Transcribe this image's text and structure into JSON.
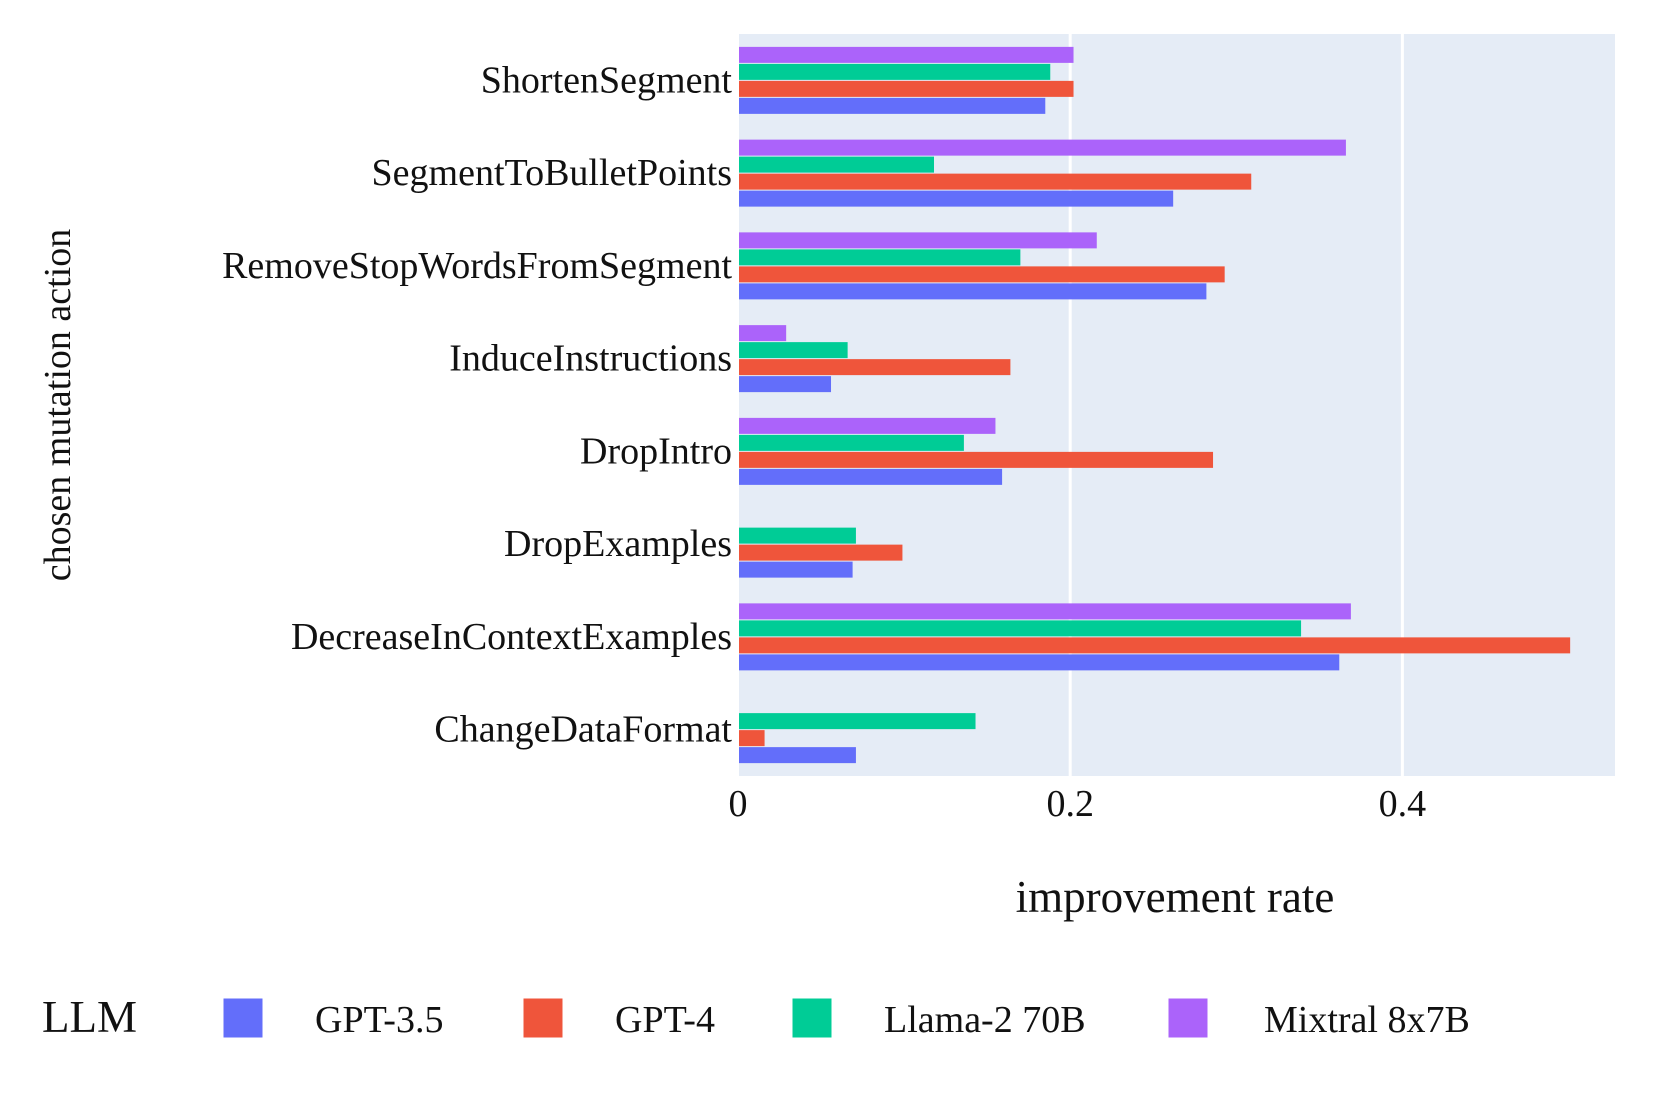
{
  "chart_data": {
    "type": "bar",
    "orientation": "horizontal",
    "barmode": "grouped",
    "ylabel": "chosen mutation action",
    "xlabel": "improvement rate",
    "categories": [
      "ShortenSegment",
      "SegmentToBulletPoints",
      "RemoveStopWordsFromSegment",
      "InduceInstructions",
      "DropIntro",
      "DropExamples",
      "DecreaseInContextExamples",
      "ChangeDataFormat"
    ],
    "series": [
      {
        "name": "GPT-3.5",
        "color": "#636efa",
        "values": [
          0.185,
          0.262,
          0.282,
          0.056,
          0.159,
          0.069,
          0.362,
          0.071
        ]
      },
      {
        "name": "GPT-4",
        "color": "#ef553b",
        "values": [
          0.202,
          0.309,
          0.293,
          0.164,
          0.286,
          0.099,
          0.501,
          0.016
        ]
      },
      {
        "name": "Llama-2 70B",
        "color": "#00cc96",
        "values": [
          0.188,
          0.118,
          0.17,
          0.066,
          0.136,
          0.071,
          0.339,
          0.143
        ]
      },
      {
        "name": "Mixtral 8x7B",
        "color": "#ab63fa",
        "values": [
          0.202,
          0.366,
          0.216,
          0.029,
          0.155,
          0.0,
          0.369,
          0.0
        ]
      }
    ],
    "xlim": [
      0,
      0.528
    ],
    "x_ticks": [
      0,
      0.2,
      0.4
    ],
    "x_tick_labels": [
      "0",
      "0.2",
      "0.4"
    ],
    "grid": true,
    "plot_background": "#e5ecf6",
    "legend": {
      "title": "LLM",
      "placement": "bottom",
      "orientation": "horizontal"
    }
  }
}
